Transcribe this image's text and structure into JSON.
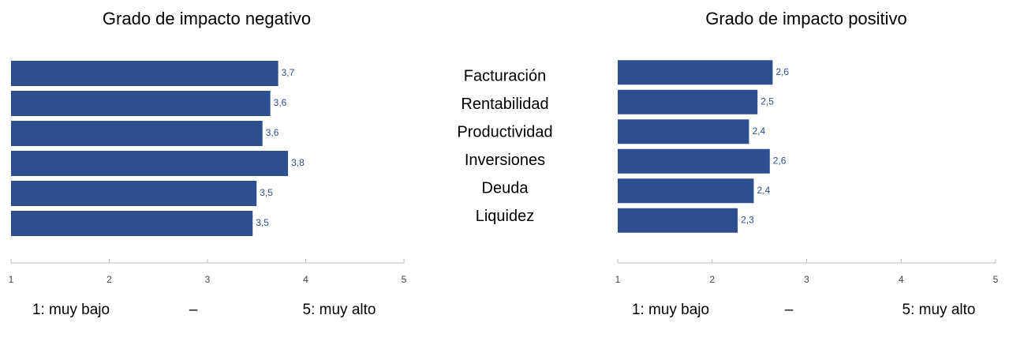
{
  "chart_data": [
    {
      "type": "bar",
      "orientation": "horizontal",
      "title": "Grado de impacto negativo",
      "categories": [
        "Facturación",
        "Rentabilidad",
        "Productividad",
        "Inversiones",
        "Deuda",
        "Liquidez"
      ],
      "values": [
        3.72,
        3.64,
        3.56,
        3.82,
        3.5,
        3.46
      ],
      "value_labels": [
        "3,7",
        "3,6",
        "3,6",
        "3,8",
        "3,5",
        "3,5"
      ],
      "color": "#2e4f8f",
      "xlim": [
        1,
        5
      ],
      "xticks": [
        1,
        2,
        3,
        4,
        5
      ],
      "scale_labels": [
        "1: muy bajo",
        "–",
        "5: muy alto"
      ]
    },
    {
      "type": "bar",
      "orientation": "horizontal",
      "title": "Grado de impacto positivo",
      "values": [
        2.64,
        2.48,
        2.39,
        2.61,
        2.44,
        2.27
      ],
      "value_labels": [
        "2,6",
        "2,5",
        "2,4",
        "2,6",
        "2,4",
        "2,3"
      ],
      "color": "#2e4f8f",
      "xlim": [
        1,
        5
      ],
      "xticks": [
        1,
        2,
        3,
        4,
        5
      ],
      "scale_labels": [
        "1: muy bajo",
        "–",
        "5: muy alto"
      ]
    }
  ]
}
